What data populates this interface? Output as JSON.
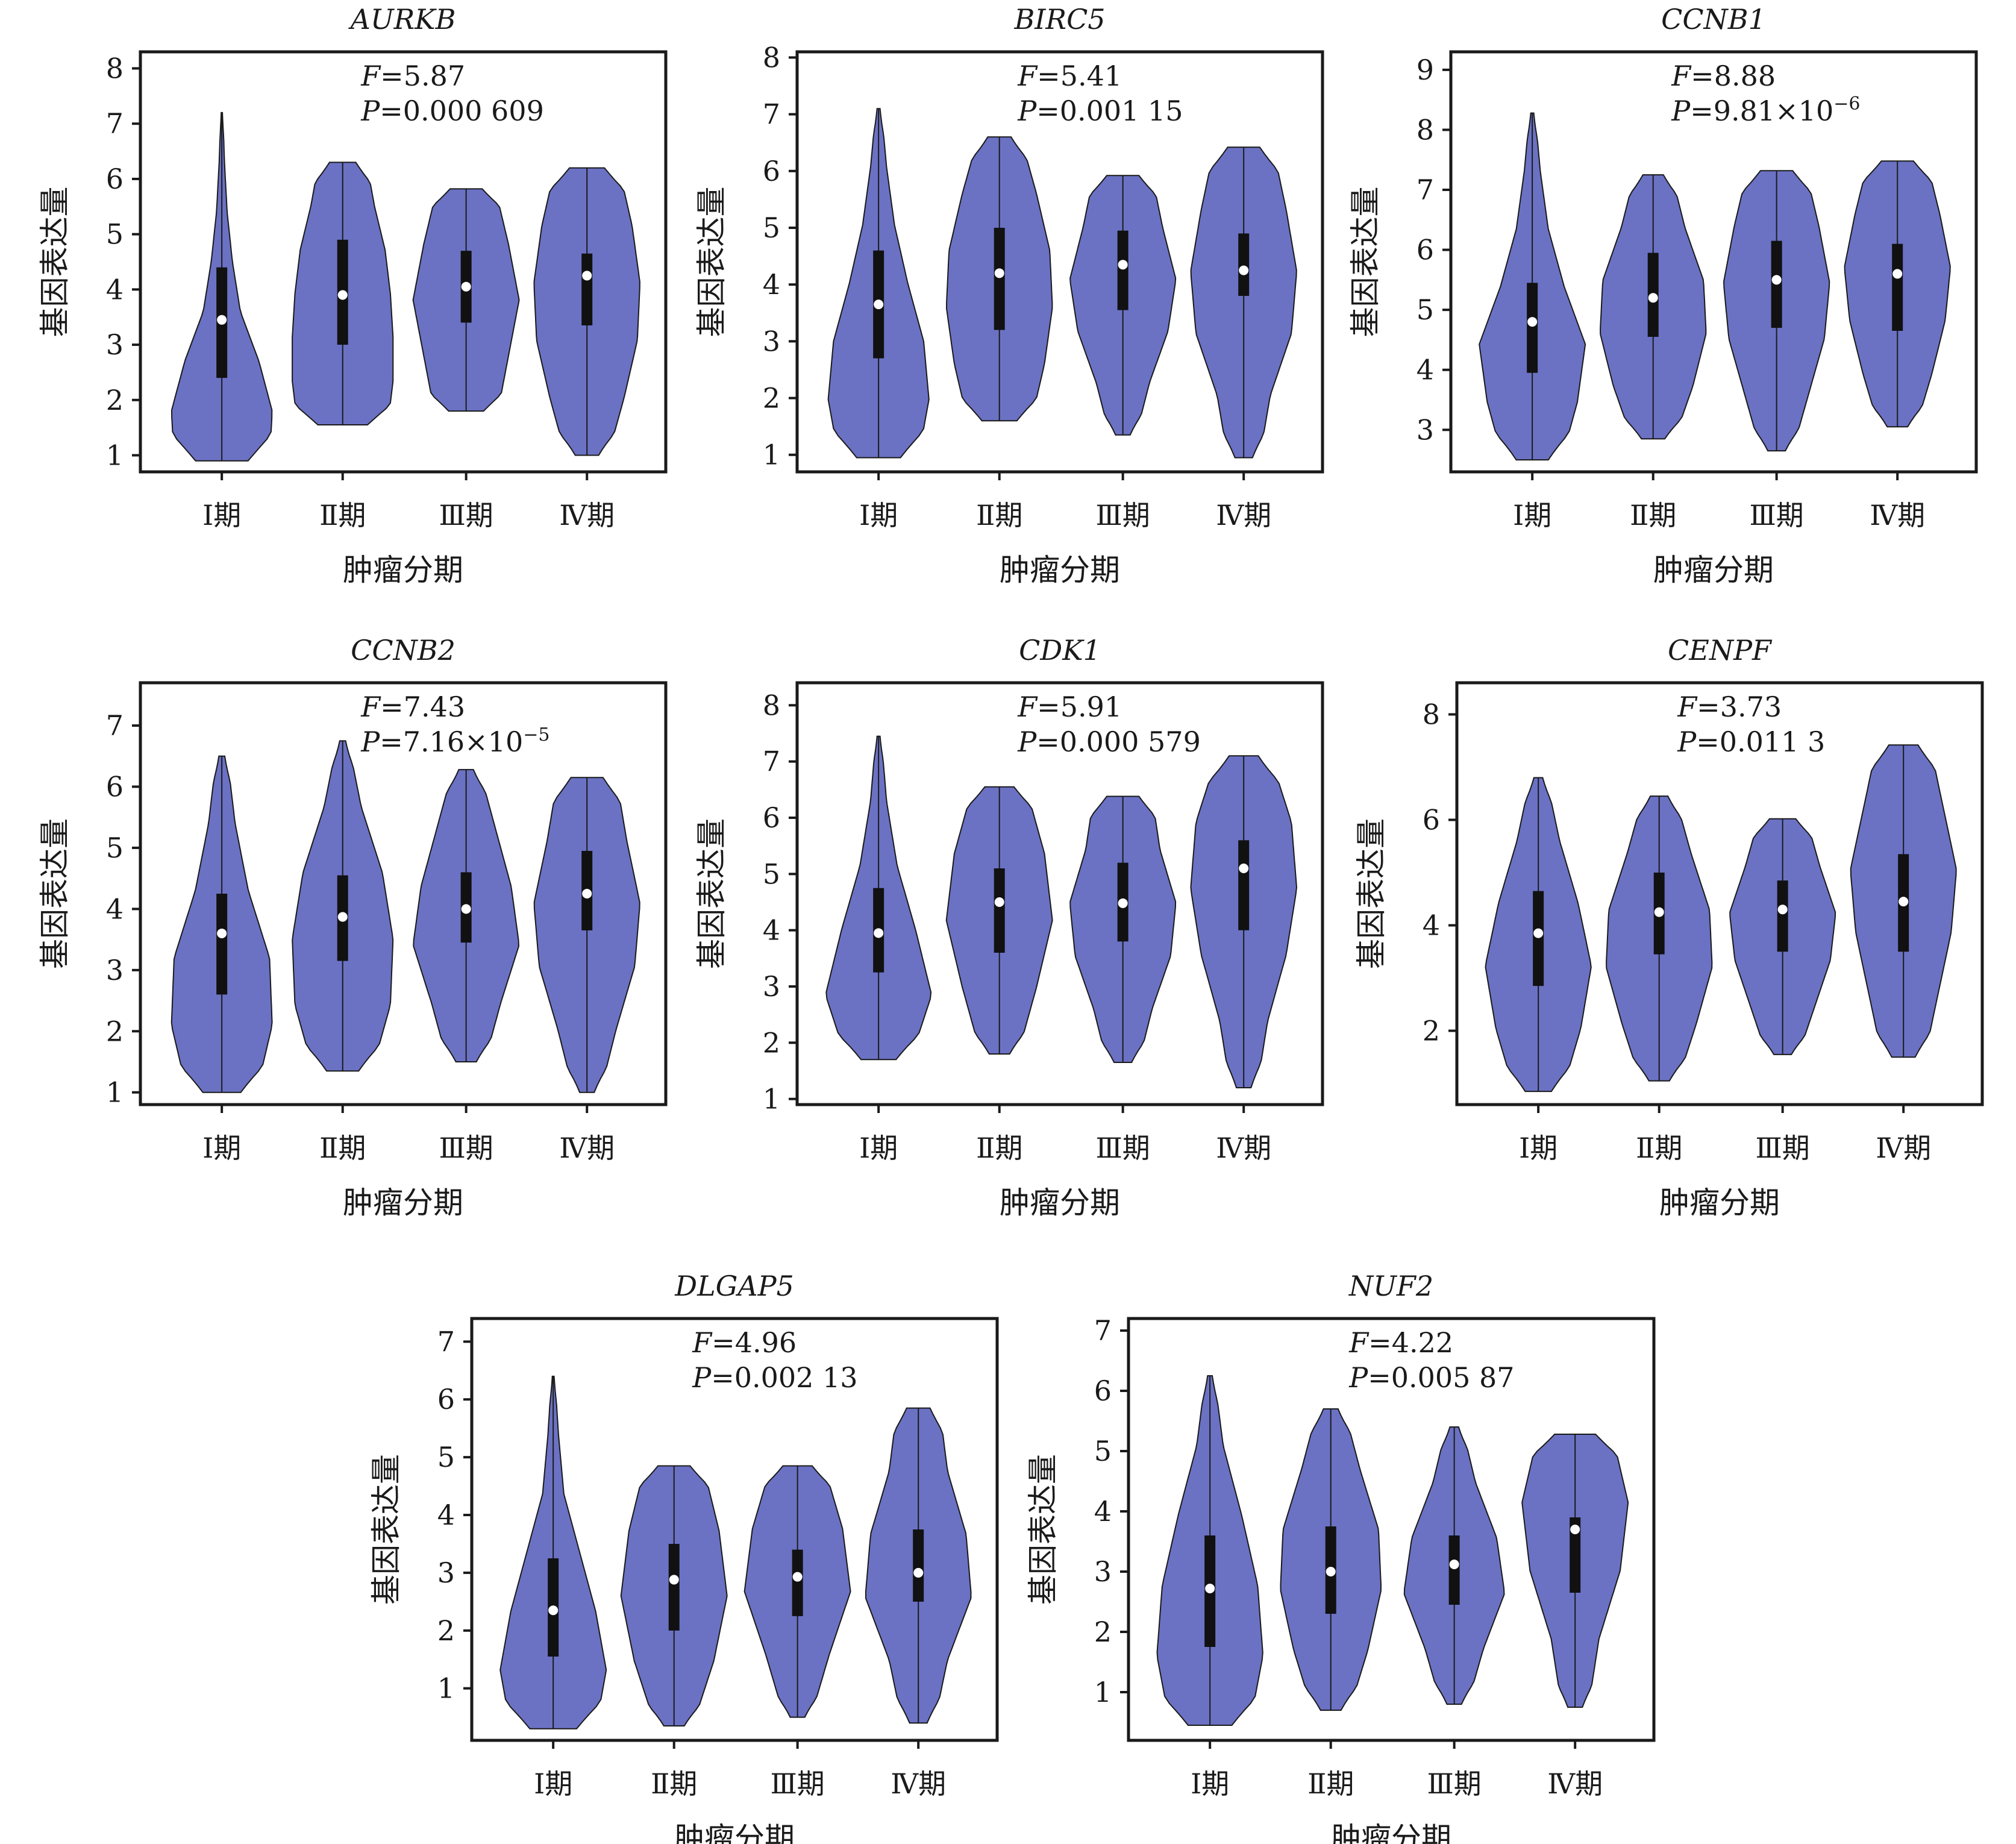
{
  "figure": {
    "violin_color": "#6b72c4",
    "box_color": "#111111",
    "median_color": "#ffffff"
  },
  "chart_data": [
    {
      "type": "violin",
      "title": "AURKB",
      "xlabel": "肿瘤分期",
      "ylabel": "基因表达量",
      "categories": [
        "Ⅰ期",
        "Ⅱ期",
        "Ⅲ期",
        "Ⅳ期"
      ],
      "ylim": [
        0.7,
        8.3
      ],
      "yticks": [
        1,
        2,
        3,
        4,
        5,
        6,
        7,
        8
      ],
      "stat_f_label": "F",
      "stat_f_value": "=5.87",
      "stat_p_label": "P",
      "stat_p_value": "=0.000 609",
      "stat_p_exp": "",
      "violins": [
        {
          "min": 0.9,
          "max": 7.2,
          "q1": 2.4,
          "median": 3.45,
          "q3": 4.4,
          "shape": [
            0.9,
            0.95,
            0.7,
            0.35,
            0.2,
            0.1,
            0.05,
            0.02
          ]
        },
        {
          "min": 1.55,
          "max": 6.3,
          "q1": 3.0,
          "median": 3.9,
          "q3": 4.9,
          "shape": [
            0.85,
            0.95,
            0.95,
            0.9,
            0.8,
            0.6,
            0.45
          ]
        },
        {
          "min": 1.8,
          "max": 5.82,
          "q1": 3.4,
          "median": 4.05,
          "q3": 4.7,
          "shape": [
            0.6,
            0.8,
            1.0,
            0.8,
            0.55
          ]
        },
        {
          "min": 1.0,
          "max": 6.2,
          "q1": 3.35,
          "median": 4.25,
          "q3": 4.65,
          "shape": [
            0.4,
            0.7,
            0.95,
            1.0,
            0.85,
            0.6
          ]
        }
      ]
    },
    {
      "type": "violin",
      "title": "BIRC5",
      "xlabel": "肿瘤分期",
      "ylabel": "基因表达量",
      "categories": [
        "Ⅰ期",
        "Ⅱ期",
        "Ⅲ期",
        "Ⅳ期"
      ],
      "ylim": [
        0.7,
        8.1
      ],
      "yticks": [
        1,
        2,
        3,
        4,
        5,
        6,
        7,
        8
      ],
      "stat_f_label": "F",
      "stat_f_value": "=5.41",
      "stat_p_label": "P",
      "stat_p_value": "=0.001 15",
      "stat_p_exp": "",
      "violins": [
        {
          "min": 0.95,
          "max": 7.1,
          "q1": 2.7,
          "median": 3.65,
          "q3": 4.6,
          "shape": [
            0.75,
            0.95,
            0.85,
            0.55,
            0.3,
            0.15,
            0.05
          ]
        },
        {
          "min": 1.6,
          "max": 6.6,
          "q1": 3.2,
          "median": 4.2,
          "q3": 5.0,
          "shape": [
            0.6,
            0.85,
            1.0,
            0.95,
            0.7,
            0.4
          ]
        },
        {
          "min": 1.35,
          "max": 5.92,
          "q1": 3.55,
          "median": 4.35,
          "q3": 4.95,
          "shape": [
            0.25,
            0.5,
            0.85,
            1.0,
            0.75,
            0.55
          ]
        },
        {
          "min": 0.95,
          "max": 6.42,
          "q1": 3.8,
          "median": 4.25,
          "q3": 4.9,
          "shape": [
            0.3,
            0.5,
            0.9,
            1.0,
            0.8,
            0.55
          ]
        }
      ]
    },
    {
      "type": "violin",
      "title": "CCNB1",
      "xlabel": "肿瘤分期",
      "ylabel": "基因表达量",
      "categories": [
        "Ⅰ期",
        "Ⅱ期",
        "Ⅲ期",
        "Ⅳ期"
      ],
      "ylim": [
        2.3,
        9.3
      ],
      "yticks": [
        3,
        4,
        5,
        6,
        7,
        8,
        9
      ],
      "stat_f_label": "F",
      "stat_f_value": "=8.88",
      "stat_p_label": "P",
      "stat_p_value": "=9.81×10",
      "stat_p_exp": "−6",
      "violins": [
        {
          "min": 2.5,
          "max": 8.28,
          "q1": 3.95,
          "median": 4.8,
          "q3": 5.45,
          "shape": [
            0.55,
            0.85,
            1.0,
            0.6,
            0.3,
            0.15,
            0.05
          ]
        },
        {
          "min": 2.85,
          "max": 7.25,
          "q1": 4.55,
          "median": 5.2,
          "q3": 5.95,
          "shape": [
            0.4,
            0.75,
            1.0,
            0.95,
            0.6,
            0.35
          ]
        },
        {
          "min": 2.65,
          "max": 7.32,
          "q1": 4.7,
          "median": 5.5,
          "q3": 6.15,
          "shape": [
            0.3,
            0.6,
            0.9,
            1.0,
            0.8,
            0.55
          ]
        },
        {
          "min": 3.05,
          "max": 7.48,
          "q1": 4.65,
          "median": 5.6,
          "q3": 6.1,
          "shape": [
            0.35,
            0.65,
            0.9,
            1.0,
            0.8,
            0.55
          ]
        }
      ]
    },
    {
      "type": "violin",
      "title": "CCNB2",
      "xlabel": "肿瘤分期",
      "ylabel": "基因表达量",
      "categories": [
        "Ⅰ期",
        "Ⅱ期",
        "Ⅲ期",
        "Ⅳ期"
      ],
      "ylim": [
        0.8,
        7.7
      ],
      "yticks": [
        1,
        2,
        3,
        4,
        5,
        6,
        7
      ],
      "stat_f_label": "F",
      "stat_f_value": "=7.43",
      "stat_p_label": "P",
      "stat_p_value": "=7.16×10",
      "stat_p_exp": "−5",
      "violins": [
        {
          "min": 1.0,
          "max": 6.5,
          "q1": 2.6,
          "median": 3.6,
          "q3": 4.25,
          "shape": [
            0.65,
            0.95,
            0.9,
            0.5,
            0.25,
            0.1
          ]
        },
        {
          "min": 1.35,
          "max": 6.75,
          "q1": 3.15,
          "median": 3.87,
          "q3": 4.55,
          "shape": [
            0.55,
            0.9,
            0.95,
            0.75,
            0.35,
            0.1
          ]
        },
        {
          "min": 1.5,
          "max": 6.28,
          "q1": 3.45,
          "median": 4.0,
          "q3": 4.6,
          "shape": [
            0.35,
            0.65,
            1.0,
            0.85,
            0.55,
            0.25
          ]
        },
        {
          "min": 1.0,
          "max": 6.15,
          "q1": 3.65,
          "median": 4.25,
          "q3": 4.95,
          "shape": [
            0.25,
            0.55,
            0.9,
            1.0,
            0.75,
            0.55
          ]
        }
      ]
    },
    {
      "type": "violin",
      "title": "CDK1",
      "xlabel": "肿瘤分期",
      "ylabel": "基因表达量",
      "categories": [
        "Ⅰ期",
        "Ⅱ期",
        "Ⅲ期",
        "Ⅳ期"
      ],
      "ylim": [
        0.9,
        8.4
      ],
      "yticks": [
        1,
        2,
        3,
        4,
        5,
        6,
        7,
        8
      ],
      "stat_f_label": "F",
      "stat_f_value": "=5.91",
      "stat_p_label": "P",
      "stat_p_value": "=0.000 579",
      "stat_p_exp": "",
      "violins": [
        {
          "min": 1.7,
          "max": 7.45,
          "q1": 3.25,
          "median": 3.95,
          "q3": 4.75,
          "shape": [
            0.6,
            1.0,
            0.7,
            0.35,
            0.15,
            0.05
          ]
        },
        {
          "min": 1.8,
          "max": 6.55,
          "q1": 3.6,
          "median": 4.5,
          "q3": 5.1,
          "shape": [
            0.35,
            0.7,
            1.0,
            0.85,
            0.5
          ]
        },
        {
          "min": 1.65,
          "max": 6.38,
          "q1": 3.8,
          "median": 4.48,
          "q3": 5.2,
          "shape": [
            0.3,
            0.55,
            0.9,
            1.0,
            0.7,
            0.55
          ]
        },
        {
          "min": 1.2,
          "max": 7.1,
          "q1": 4.0,
          "median": 5.1,
          "q3": 5.6,
          "shape": [
            0.25,
            0.45,
            0.8,
            1.0,
            0.9,
            0.5
          ]
        }
      ]
    },
    {
      "type": "violin",
      "title": "CENPF",
      "xlabel": "肿瘤分期",
      "ylabel": "基因表达量",
      "categories": [
        "Ⅰ期",
        "Ⅱ期",
        "Ⅲ期",
        "Ⅳ期"
      ],
      "ylim": [
        0.6,
        8.6
      ],
      "yticks": [
        2,
        4,
        6,
        8
      ],
      "stat_f_label": "F",
      "stat_f_value": "=3.73",
      "stat_p_label": "P",
      "stat_p_value": "=0.011 3",
      "stat_p_exp": "",
      "violins": [
        {
          "min": 0.85,
          "max": 6.8,
          "q1": 2.85,
          "median": 3.85,
          "q3": 4.65,
          "shape": [
            0.45,
            0.8,
            1.0,
            0.75,
            0.4,
            0.15
          ]
        },
        {
          "min": 1.05,
          "max": 6.45,
          "q1": 3.45,
          "median": 4.25,
          "q3": 5.0,
          "shape": [
            0.35,
            0.7,
            1.0,
            0.95,
            0.6,
            0.3
          ]
        },
        {
          "min": 1.55,
          "max": 6.02,
          "q1": 3.5,
          "median": 4.3,
          "q3": 4.85,
          "shape": [
            0.3,
            0.6,
            0.9,
            1.0,
            0.7,
            0.45
          ]
        },
        {
          "min": 1.5,
          "max": 7.42,
          "q1": 3.5,
          "median": 4.45,
          "q3": 5.35,
          "shape": [
            0.4,
            0.65,
            0.9,
            1.0,
            0.75,
            0.5
          ]
        }
      ]
    },
    {
      "type": "violin",
      "title": "DLGAP5",
      "xlabel": "肿瘤分期",
      "ylabel": "基因表达量",
      "categories": [
        "Ⅰ期",
        "Ⅱ期",
        "Ⅲ期",
        "Ⅳ期"
      ],
      "ylim": [
        0.1,
        7.4
      ],
      "yticks": [
        1,
        2,
        3,
        4,
        5,
        6,
        7
      ],
      "stat_f_label": "F",
      "stat_f_value": "=4.96",
      "stat_p_label": "P",
      "stat_p_value": "=0.002 13",
      "stat_p_exp": "",
      "violins": [
        {
          "min": 0.3,
          "max": 6.4,
          "q1": 1.55,
          "median": 2.35,
          "q3": 3.25,
          "shape": [
            0.8,
            1.0,
            0.8,
            0.5,
            0.2,
            0.1,
            0.03
          ]
        },
        {
          "min": 0.35,
          "max": 4.85,
          "q1": 2.0,
          "median": 2.88,
          "q3": 3.5,
          "shape": [
            0.35,
            0.75,
            1.0,
            0.85,
            0.55
          ]
        },
        {
          "min": 0.5,
          "max": 4.85,
          "q1": 2.25,
          "median": 2.93,
          "q3": 3.4,
          "shape": [
            0.25,
            0.6,
            1.0,
            0.85,
            0.5
          ]
        },
        {
          "min": 0.4,
          "max": 5.85,
          "q1": 2.5,
          "median": 3.0,
          "q3": 3.75,
          "shape": [
            0.3,
            0.55,
            1.0,
            0.9,
            0.55,
            0.4
          ]
        }
      ]
    },
    {
      "type": "violin",
      "title": "NUF2",
      "xlabel": "肿瘤分期",
      "ylabel": "基因表达量",
      "categories": [
        "Ⅰ期",
        "Ⅱ期",
        "Ⅲ期",
        "Ⅳ期"
      ],
      "ylim": [
        0.2,
        7.2
      ],
      "yticks": [
        1,
        2,
        3,
        4,
        5,
        6,
        7
      ],
      "stat_f_label": "F",
      "stat_f_value": "=4.22",
      "stat_p_label": "P",
      "stat_p_value": "=0.005 87",
      "stat_p_exp": "",
      "violins": [
        {
          "min": 0.45,
          "max": 6.25,
          "q1": 1.75,
          "median": 2.72,
          "q3": 3.6,
          "shape": [
            0.75,
            1.0,
            0.9,
            0.6,
            0.25,
            0.08
          ]
        },
        {
          "min": 0.7,
          "max": 5.7,
          "q1": 2.3,
          "median": 3.0,
          "q3": 3.75,
          "shape": [
            0.35,
            0.7,
            0.95,
            0.9,
            0.55,
            0.25
          ]
        },
        {
          "min": 0.8,
          "max": 5.4,
          "q1": 2.45,
          "median": 3.12,
          "q3": 3.6,
          "shape": [
            0.25,
            0.55,
            0.95,
            0.8,
            0.4,
            0.15
          ]
        },
        {
          "min": 0.75,
          "max": 5.28,
          "q1": 2.65,
          "median": 3.7,
          "q3": 3.9,
          "shape": [
            0.25,
            0.45,
            0.85,
            1.0,
            0.7
          ]
        }
      ]
    }
  ]
}
